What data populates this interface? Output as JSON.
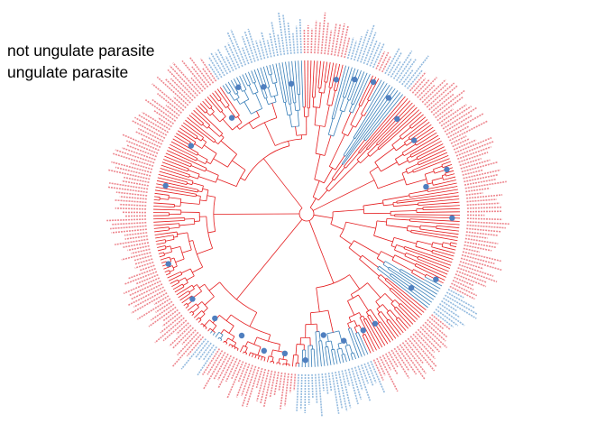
{
  "legend": {
    "entries": [
      {
        "label": "not ungulate parasite",
        "color": "#e41a1c"
      },
      {
        "label": "ungulate parasite",
        "color": "#377eb8"
      }
    ]
  },
  "colors": {
    "not_ungulate": "#e41a1c",
    "ungulate": "#377eb8",
    "tip_label_red": "#e8606a",
    "tip_label_blue": "#6fa3d4",
    "node_marker": "#4f7fbf"
  },
  "tree": {
    "layout": "circular",
    "tip_count": 300,
    "ungulate_tip_ranges": [
      [
        10,
        18
      ],
      [
        22,
        30
      ],
      [
        96,
        104
      ],
      [
        128,
        150
      ],
      [
        176,
        180
      ],
      [
        270,
        296
      ]
    ],
    "node_markers_at_tips": [
      8,
      14,
      20,
      27,
      34,
      44,
      58,
      62,
      74,
      95,
      102,
      121,
      126,
      134,
      141,
      148,
      155,
      162,
      171,
      182,
      192,
      206,
      232,
      248,
      266,
      274,
      282,
      292
    ]
  }
}
